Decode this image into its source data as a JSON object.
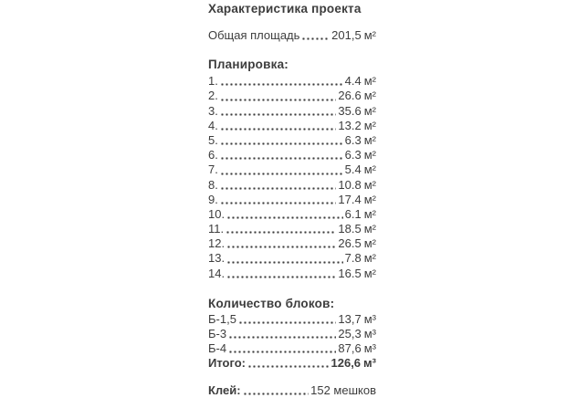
{
  "doc": {
    "title": "Характеристика проекта",
    "total_area": {
      "label": "Общая площадь",
      "value": "201,5",
      "unit": "м²"
    },
    "planning": {
      "heading": "Планировка:",
      "rows": [
        {
          "num": "1.",
          "value": "4.4",
          "unit": "м²"
        },
        {
          "num": "2.",
          "value": "26.6",
          "unit": "м²"
        },
        {
          "num": "3.",
          "value": "35.6",
          "unit": "м²"
        },
        {
          "num": "4.",
          "value": "13.2",
          "unit": "м²"
        },
        {
          "num": "5.",
          "value": "6.3",
          "unit": "м²"
        },
        {
          "num": "6.",
          "value": "6.3",
          "unit": "м²"
        },
        {
          "num": "7.",
          "value": "5.4",
          "unit": "м²"
        },
        {
          "num": "8.",
          "value": "10.8",
          "unit": "м²"
        },
        {
          "num": "9.",
          "value": "17.4",
          "unit": "м²"
        },
        {
          "num": "10.",
          "value": "6.1",
          "unit": "м²"
        },
        {
          "num": "11.",
          "value": "18.5",
          "unit": "м²"
        },
        {
          "num": "12.",
          "value": "26.5",
          "unit": "м²"
        },
        {
          "num": "13.",
          "value": "7.8",
          "unit": "м²"
        },
        {
          "num": "14.",
          "value": "16.5",
          "unit": "м²"
        }
      ]
    },
    "blocks": {
      "heading": "Количество блоков:",
      "rows": [
        {
          "label": "Б-1,5",
          "value": "13,7",
          "unit": "м³"
        },
        {
          "label": "Б-3",
          "value": "25,3",
          "unit": "м³"
        },
        {
          "label": "Б-4",
          "value": "87,6",
          "unit": "м³"
        },
        {
          "label": "Итого:",
          "value": "126,6",
          "unit": "м³"
        }
      ]
    },
    "glue": {
      "label": "Клей:",
      "value": "152 мешков"
    }
  },
  "colors": {
    "text": "#3d3d3d",
    "background": "#ffffff"
  }
}
